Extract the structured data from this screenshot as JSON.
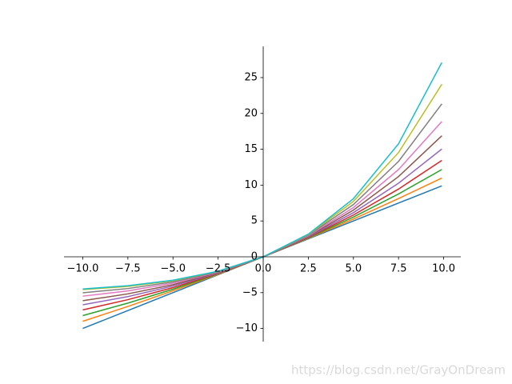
{
  "chart_data": {
    "type": "line",
    "x": [
      -10,
      -7.5,
      -5,
      -2.5,
      0,
      2.5,
      5,
      7.5,
      9.9
    ],
    "series": [
      {
        "color": "#1f77b4",
        "values": [
          -10,
          -7.5,
          -5,
          -2.5,
          0,
          2.5,
          5,
          7.5,
          9.9
        ]
      },
      {
        "color": "#ff7f0e",
        "values": [
          -9.0,
          -6.93,
          -4.74,
          -2.44,
          0,
          2.57,
          5.27,
          8.12,
          10.99
        ]
      },
      {
        "color": "#2ca02c",
        "values": [
          -8.2,
          -6.46,
          -4.52,
          -2.38,
          0,
          2.63,
          5.54,
          8.77,
          12.18
        ]
      },
      {
        "color": "#d62728",
        "values": [
          -7.41,
          -5.98,
          -4.3,
          -2.32,
          0,
          2.7,
          5.83,
          9.45,
          13.45
        ]
      },
      {
        "color": "#9467bd",
        "values": [
          -6.7,
          -5.55,
          -4.08,
          -2.26,
          0,
          2.77,
          6.16,
          10.27,
          15.04
        ]
      },
      {
        "color": "#8c564b",
        "values": [
          -6.13,
          -5.17,
          -3.89,
          -2.2,
          0,
          2.85,
          6.51,
          11.19,
          16.89
        ]
      },
      {
        "color": "#e377c2",
        "values": [
          -5.49,
          -4.76,
          -3.68,
          -2.14,
          0,
          2.93,
          6.88,
          12.17,
          18.87
        ]
      },
      {
        "color": "#7f7f7f",
        "values": [
          -5.02,
          -4.43,
          -3.5,
          -2.09,
          0,
          3.01,
          7.29,
          13.31,
          21.33
        ]
      },
      {
        "color": "#bcbd22",
        "values": [
          -4.58,
          -4.13,
          -3.33,
          -2.03,
          0,
          3.1,
          7.72,
          14.54,
          24.07
        ]
      },
      {
        "color": "#17becf",
        "values": [
          -4.49,
          -4.03,
          -3.26,
          -2.01,
          0,
          3.16,
          8.1,
          15.77,
          27.1
        ]
      }
    ],
    "xlim": [
      -11.04,
      10.95
    ],
    "ylim": [
      -11.83,
      29.35
    ],
    "xticks": [
      {
        "value": -10,
        "label": "−10.0"
      },
      {
        "value": -7.5,
        "label": "−7.5"
      },
      {
        "value": -5,
        "label": "−5.0"
      },
      {
        "value": -2.5,
        "label": "−2.5"
      },
      {
        "value": 0,
        "label": "0.0"
      },
      {
        "value": 2.5,
        "label": "2.5"
      },
      {
        "value": 5,
        "label": "5.0"
      },
      {
        "value": 7.5,
        "label": "7.5"
      },
      {
        "value": 10,
        "label": "10.0"
      }
    ],
    "yticks": [
      {
        "value": -10,
        "label": "−10"
      },
      {
        "value": -5,
        "label": "−5"
      },
      0,
      5,
      10,
      15,
      20,
      25
    ],
    "grid": false,
    "watermark": "https://blog.csdn.net/GrayOnDream"
  }
}
